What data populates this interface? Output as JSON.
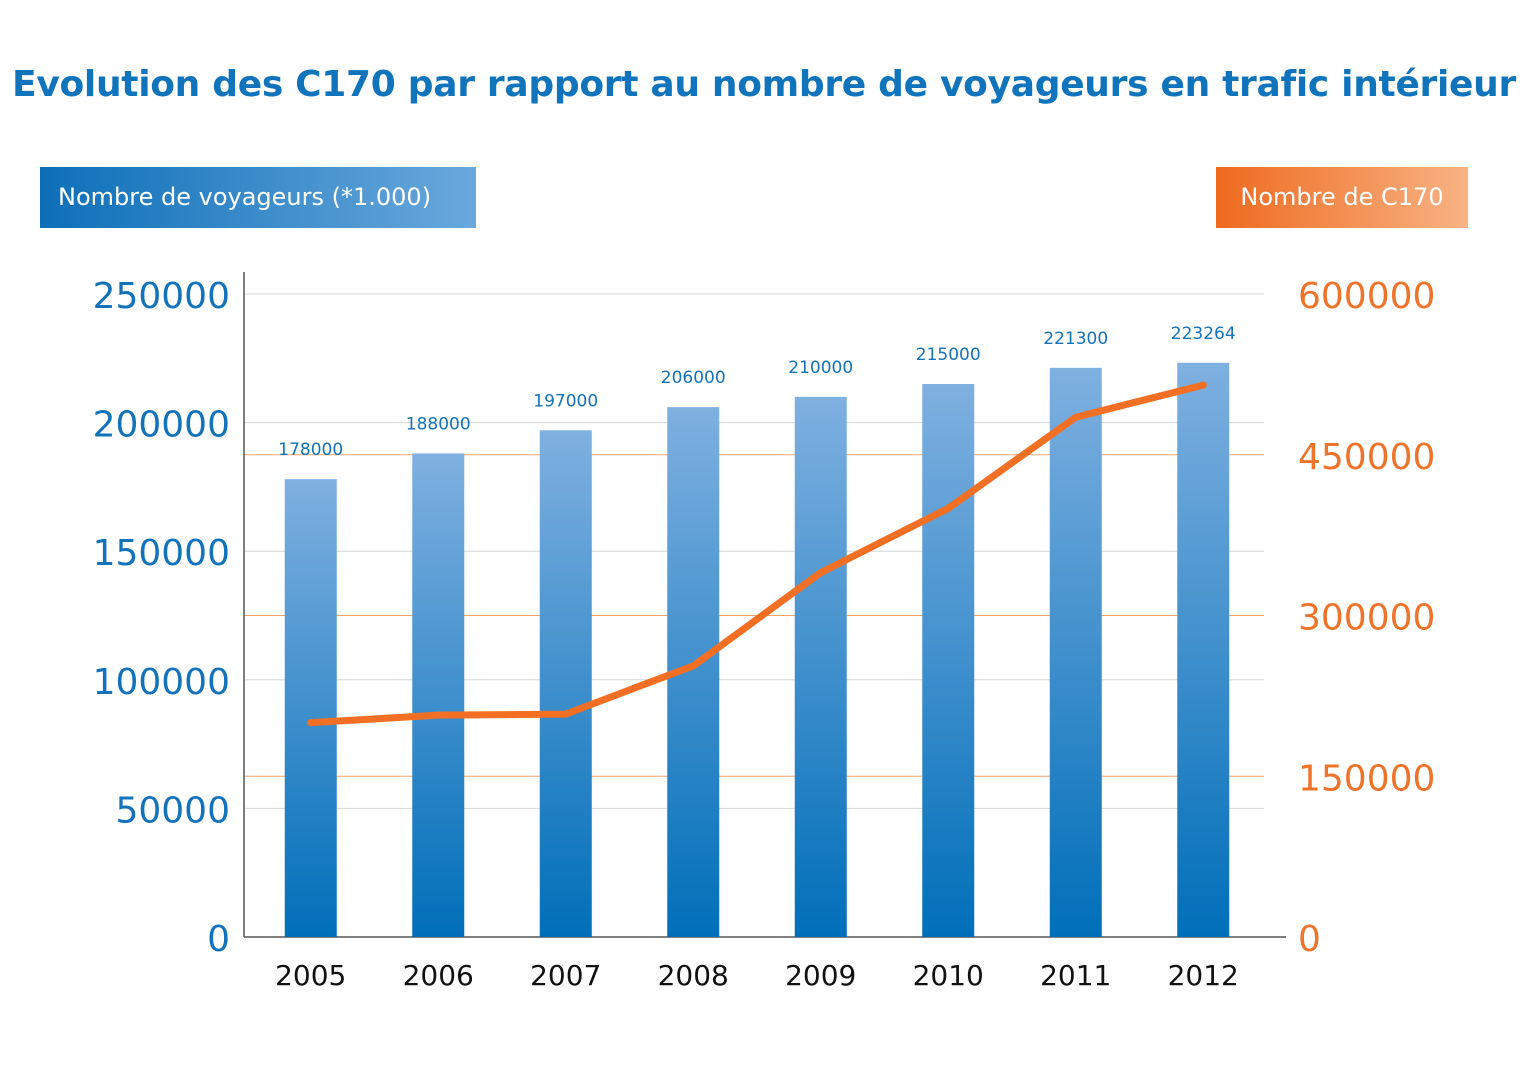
{
  "title": "Evolution des C170 par rapport au nombre de voyageurs en trafic intérieur",
  "left_axis_label": "Nombre de voyageurs (*1.000)",
  "right_axis_label": "Nombre de C170",
  "colors": {
    "title": "#0f74bb",
    "bar_top": "#7fb0e0",
    "bar_bottom": "#006fb9",
    "line": "#f26f23",
    "left_axis_text": "#1273bb",
    "right_axis_text": "#f0732a",
    "grid_left": "#d6d6d6",
    "grid_right": "#f0a46c"
  },
  "chart_data": {
    "type": "bar+line",
    "categories": [
      "2005",
      "2006",
      "2007",
      "2008",
      "2009",
      "2010",
      "2011",
      "2012"
    ],
    "series": [
      {
        "name": "Nombre de voyageurs (*1.000)",
        "type": "bar",
        "axis": "left",
        "values": [
          178000,
          188000,
          197000,
          206000,
          210000,
          215000,
          221300,
          223264
        ],
        "labels": [
          "178000",
          "188000",
          "197000",
          "206000",
          "210000",
          "215000",
          "221300",
          "223264"
        ]
      },
      {
        "name": "Nombre de C170",
        "type": "line",
        "axis": "right",
        "values": [
          200000,
          207000,
          208000,
          253000,
          340000,
          400000,
          485000,
          515000
        ]
      }
    ],
    "left_axis": {
      "min": 0,
      "max": 250000,
      "ticks": [
        "0",
        "50000",
        "100000",
        "150000",
        "200000",
        "250000"
      ]
    },
    "right_axis": {
      "min": 0,
      "max": 600000,
      "ticks": [
        "0",
        "150000",
        "300000",
        "450000",
        "600000"
      ]
    }
  }
}
